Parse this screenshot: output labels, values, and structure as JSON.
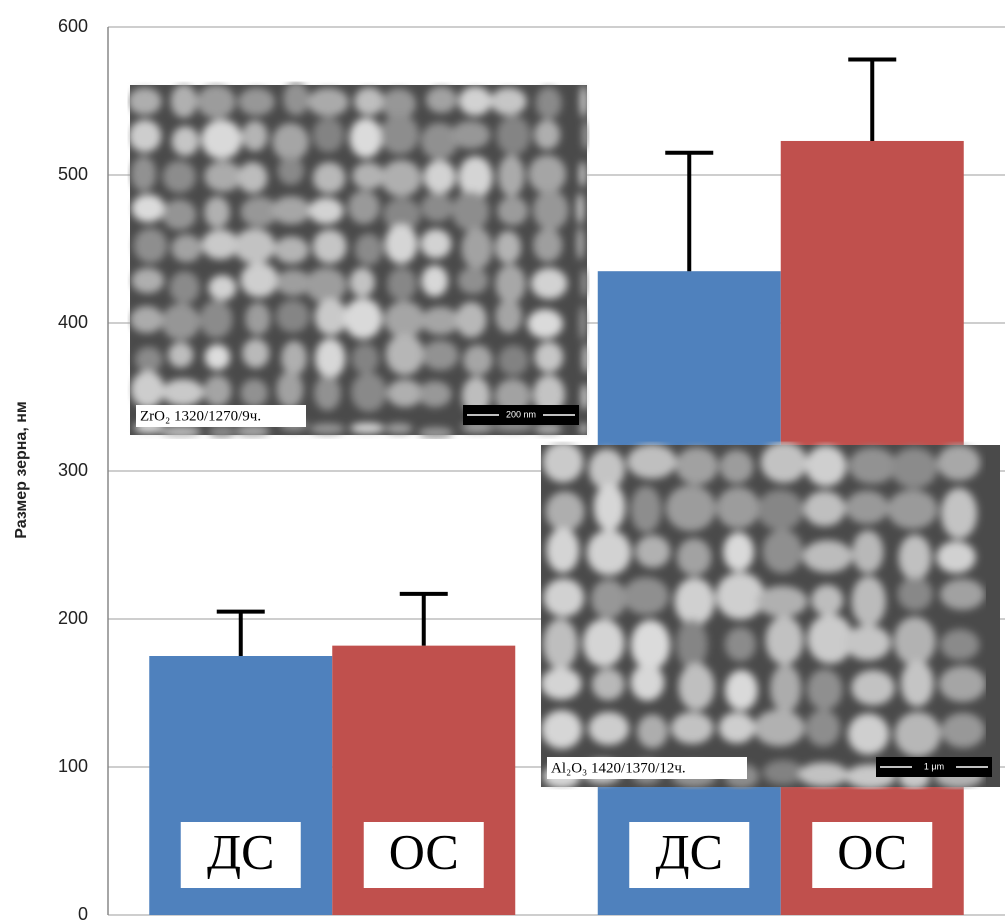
{
  "chart_data": {
    "type": "bar",
    "y_label": "Размер зерна, нм",
    "categories": [
      null,
      null
    ],
    "series": [
      {
        "name": "ДС",
        "color": "#4f81bd",
        "values": [
          175,
          435
        ],
        "errors": [
          30,
          80
        ]
      },
      {
        "name": "ОС",
        "color": "#c0504d",
        "values": [
          182,
          523
        ],
        "errors": [
          35,
          55
        ]
      }
    ],
    "ylim": [
      0,
      600
    ],
    "yticks": [
      0,
      100,
      200,
      300,
      400,
      500,
      600
    ],
    "grid": true,
    "insets": [
      {
        "caption": "ZrO₂ 1320/1270/9ч.",
        "scale_bar": "200 nm"
      },
      {
        "caption": "Al₂O₃ 1420/1370/12ч.",
        "scale_bar": "1 μm"
      }
    ]
  }
}
